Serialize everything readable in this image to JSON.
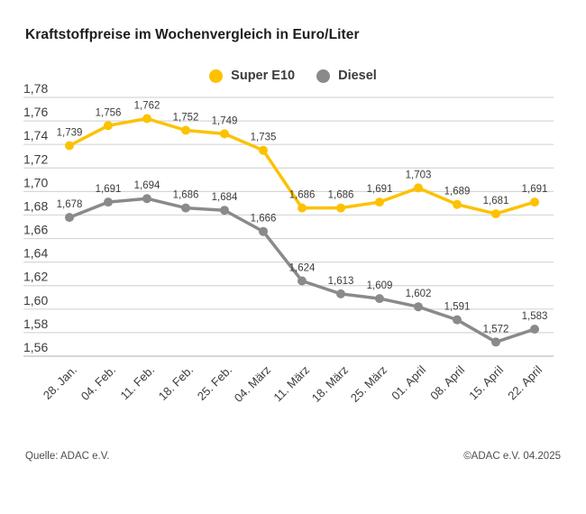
{
  "title": "Kraftstoffpreise im Wochenvergleich in Euro/Liter",
  "legend": [
    {
      "label": "Super E10",
      "color": "#fcc200"
    },
    {
      "label": "Diesel",
      "color": "#8a8a8a"
    }
  ],
  "chart_data": {
    "type": "line",
    "title": "Kraftstoffpreise im Wochenvergleich in Euro/Liter",
    "xlabel": "",
    "ylabel": "Euro/Liter",
    "categories": [
      "28. Jan.",
      "04. Feb.",
      "11. Feb.",
      "18. Feb.",
      "25. Feb.",
      "04. März",
      "11. März",
      "18. März",
      "25. März",
      "01. April",
      "08. April",
      "15. April",
      "22. April"
    ],
    "series": [
      {
        "name": "Super E10",
        "color": "#fcc200",
        "values": [
          1.739,
          1.756,
          1.762,
          1.752,
          1.749,
          1.735,
          1.686,
          1.686,
          1.691,
          1.703,
          1.689,
          1.681,
          1.691
        ]
      },
      {
        "name": "Diesel",
        "color": "#8a8a8a",
        "values": [
          1.678,
          1.691,
          1.694,
          1.686,
          1.684,
          1.666,
          1.624,
          1.613,
          1.609,
          1.602,
          1.591,
          1.572,
          1.583
        ]
      }
    ],
    "ylim": [
      1.56,
      1.78
    ],
    "ytick_step": 0.02,
    "decimal_separator": ",",
    "grid": true,
    "legend_position": "top",
    "colors": {
      "grid": "#d7d7d7",
      "axis": "#bfbfbf",
      "text": "#3b3b3a"
    }
  },
  "footer": {
    "source": "Quelle: ADAC e.V.",
    "copyright": "©ADAC e.V. 04.2025"
  }
}
